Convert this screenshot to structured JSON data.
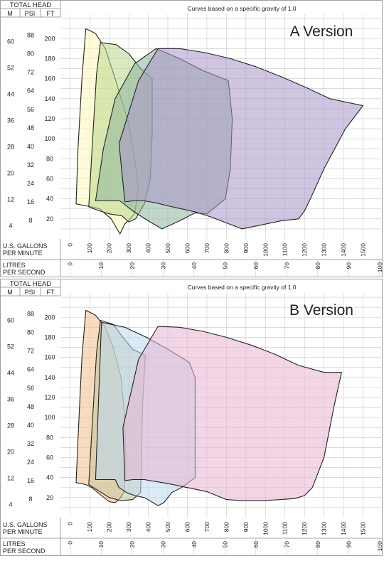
{
  "charts": [
    {
      "version_label": "A Version",
      "subtitle": "Curves based on a specific gravity of 1.0",
      "header": {
        "total_head": "TOTAL HEAD",
        "col_m": "M",
        "col_psi": "PSI",
        "col_ft": "FT"
      },
      "gpm_label_1": "U.S. GALLONS",
      "gpm_label_2": "PER MINUTE",
      "lps_label_1": "LITRES",
      "lps_label_2": "PER SECOND",
      "zone_colors": [
        "#fff5b8",
        "#b9d98c",
        "#8db59f",
        "#a796c9"
      ]
    },
    {
      "version_label": "B Version",
      "subtitle": "Curves based on a specific gravity of 1.0",
      "header": {
        "total_head": "TOTAL HEAD",
        "col_m": "M",
        "col_psi": "PSI",
        "col_ft": "FT"
      },
      "gpm_label_1": "U.S. GALLONS",
      "gpm_label_2": "PER MINUTE",
      "lps_label_1": "LITRES",
      "lps_label_2": "PER SECOND",
      "zone_colors": [
        "#f0c08c",
        "#c4c49c",
        "#bcd8f0",
        "#e8b4d0"
      ]
    }
  ],
  "chart_data": [
    {
      "type": "area",
      "title": "A Version",
      "subtitle": "Curves based on a specific gravity of 1.0",
      "xlabel": "U.S. GALLONS PER MINUTE",
      "x2label": "LITRES PER SECOND",
      "ylabel": "TOTAL HEAD (FT)",
      "xlim": [
        -50,
        1600
      ],
      "ylim": [
        0,
        230
      ],
      "x_ticks_gpm": [
        0,
        100,
        200,
        300,
        400,
        500,
        600,
        700,
        800,
        900,
        1000,
        1100,
        1200,
        1300,
        1400,
        1500
      ],
      "x_ticks_lps": [
        0,
        10,
        20,
        30,
        40,
        50,
        60,
        70,
        80,
        90,
        100
      ],
      "y_ticks_ft": [
        20,
        40,
        60,
        80,
        100,
        120,
        140,
        160,
        180,
        200
      ],
      "y_ticks_psi": [
        8,
        16,
        24,
        32,
        40,
        48,
        56,
        64,
        72,
        80,
        88
      ],
      "y_ticks_m": [
        4,
        12,
        20,
        28,
        36,
        44,
        52,
        60
      ],
      "grid": true,
      "series": [
        {
          "points": [
            [
              80,
              210
            ],
            [
              130,
              205
            ],
            [
              180,
              190
            ],
            [
              230,
              160
            ],
            [
              300,
              115
            ],
            [
              330,
              80
            ],
            [
              350,
              50
            ],
            [
              330,
              25
            ],
            [
              280,
              15
            ],
            [
              255,
              5
            ],
            [
              210,
              20
            ],
            [
              150,
              30
            ],
            [
              110,
              32
            ],
            [
              80,
              33
            ],
            [
              30,
              35
            ],
            [
              40,
              90
            ],
            [
              60,
              160
            ],
            [
              80,
              210
            ]
          ]
        },
        {
          "points": [
            [
              155,
              196
            ],
            [
              235,
              194
            ],
            [
              300,
              185
            ],
            [
              360,
              170
            ],
            [
              420,
              160
            ],
            [
              420,
              105
            ],
            [
              410,
              60
            ],
            [
              380,
              35
            ],
            [
              335,
              20
            ],
            [
              300,
              17
            ],
            [
              265,
              23
            ],
            [
              200,
              25
            ],
            [
              150,
              28
            ],
            [
              95,
              32
            ],
            [
              115,
              100
            ],
            [
              135,
              165
            ],
            [
              155,
              196
            ]
          ]
        },
        {
          "points": [
            [
              440,
              190
            ],
            [
              560,
              180
            ],
            [
              680,
              168
            ],
            [
              810,
              158
            ],
            [
              830,
              120
            ],
            [
              820,
              70
            ],
            [
              795,
              40
            ],
            [
              700,
              25
            ],
            [
              640,
              26
            ],
            [
              560,
              18
            ],
            [
              470,
              10
            ],
            [
              400,
              18
            ],
            [
              320,
              28
            ],
            [
              255,
              38
            ],
            [
              130,
              38
            ],
            [
              170,
              90
            ],
            [
              230,
              140
            ],
            [
              330,
              175
            ],
            [
              440,
              190
            ]
          ]
        },
        {
          "points": [
            [
              450,
              190
            ],
            [
              560,
              190
            ],
            [
              690,
              186
            ],
            [
              820,
              180
            ],
            [
              950,
              172
            ],
            [
              1080,
              162
            ],
            [
              1210,
              151
            ],
            [
              1330,
              140
            ],
            [
              1500,
              133
            ],
            [
              1410,
              110
            ],
            [
              1300,
              70
            ],
            [
              1230,
              40
            ],
            [
              1200,
              28
            ],
            [
              1170,
              20
            ],
            [
              1080,
              18
            ],
            [
              980,
              14
            ],
            [
              880,
              10
            ],
            [
              800,
              16
            ],
            [
              720,
              22
            ],
            [
              640,
              27
            ],
            [
              500,
              33
            ],
            [
              440,
              36
            ],
            [
              380,
              38
            ],
            [
              320,
              38
            ],
            [
              280,
              37
            ],
            [
              250,
              95
            ],
            [
              350,
              158
            ],
            [
              450,
              190
            ]
          ]
        }
      ]
    },
    {
      "type": "area",
      "title": "B Version",
      "subtitle": "Curves based on a specific gravity of 1.0",
      "xlabel": "U.S. GALLONS PER MINUTE",
      "x2label": "LITRES PER SECOND",
      "ylabel": "TOTAL HEAD (FT)",
      "xlim": [
        -50,
        1600
      ],
      "ylim": [
        0,
        230
      ],
      "x_ticks_gpm": [
        0,
        100,
        200,
        300,
        400,
        500,
        600,
        700,
        800,
        900,
        1000,
        1100,
        1200,
        1300,
        1400,
        1500
      ],
      "x_ticks_lps": [
        0,
        10,
        20,
        30,
        40,
        50,
        60,
        70,
        80,
        90,
        100
      ],
      "y_ticks_ft": [
        20,
        40,
        60,
        80,
        100,
        120,
        140,
        160,
        180,
        200
      ],
      "y_ticks_psi": [
        8,
        16,
        24,
        32,
        40,
        48,
        56,
        64,
        72,
        80,
        88
      ],
      "y_ticks_m": [
        4,
        12,
        20,
        28,
        36,
        44,
        52,
        60
      ],
      "grid": true,
      "series": [
        {
          "points": [
            [
              80,
              207
            ],
            [
              130,
              202
            ],
            [
              180,
              190
            ],
            [
              220,
              170
            ],
            [
              260,
              140
            ],
            [
              280,
              100
            ],
            [
              285,
              50
            ],
            [
              275,
              25
            ],
            [
              250,
              18
            ],
            [
              230,
              15
            ],
            [
              200,
              16
            ],
            [
              160,
              22
            ],
            [
              110,
              30
            ],
            [
              80,
              33
            ],
            [
              30,
              35
            ],
            [
              45,
              100
            ],
            [
              60,
              160
            ],
            [
              80,
              207
            ]
          ]
        },
        {
          "points": [
            [
              155,
              197
            ],
            [
              220,
              193
            ],
            [
              270,
              180
            ],
            [
              320,
              168
            ],
            [
              385,
              162
            ],
            [
              370,
              110
            ],
            [
              365,
              50
            ],
            [
              360,
              25
            ],
            [
              320,
              18
            ],
            [
              260,
              17
            ],
            [
              200,
              20
            ],
            [
              160,
              25
            ],
            [
              95,
              33
            ],
            [
              115,
              100
            ],
            [
              135,
              165
            ],
            [
              155,
              197
            ]
          ]
        },
        {
          "points": [
            [
              160,
              195
            ],
            [
              280,
              190
            ],
            [
              390,
              180
            ],
            [
              510,
              167
            ],
            [
              610,
              155
            ],
            [
              640,
              140
            ],
            [
              640,
              100
            ],
            [
              640,
              60
            ],
            [
              640,
              40
            ],
            [
              570,
              30
            ],
            [
              520,
              25
            ],
            [
              480,
              15
            ],
            [
              450,
              12
            ],
            [
              380,
              20
            ],
            [
              330,
              22
            ],
            [
              290,
              25
            ],
            [
              250,
              30
            ],
            [
              230,
              38
            ],
            [
              130,
              38
            ],
            [
              160,
              195
            ]
          ]
        },
        {
          "points": [
            [
              450,
              191
            ],
            [
              560,
              190
            ],
            [
              680,
              186
            ],
            [
              800,
              180
            ],
            [
              930,
              172
            ],
            [
              1050,
              163
            ],
            [
              1170,
              152
            ],
            [
              1300,
              145
            ],
            [
              1390,
              145
            ],
            [
              1350,
              110
            ],
            [
              1300,
              60
            ],
            [
              1240,
              30
            ],
            [
              1200,
              22
            ],
            [
              1150,
              19
            ],
            [
              1080,
              18
            ],
            [
              980,
              17
            ],
            [
              880,
              17
            ],
            [
              800,
              18
            ],
            [
              700,
              26
            ],
            [
              600,
              30
            ],
            [
              500,
              34
            ],
            [
              440,
              36
            ],
            [
              380,
              38
            ],
            [
              320,
              38
            ],
            [
              280,
              37
            ],
            [
              270,
              90
            ],
            [
              350,
              158
            ],
            [
              450,
              191
            ]
          ]
        }
      ]
    }
  ]
}
